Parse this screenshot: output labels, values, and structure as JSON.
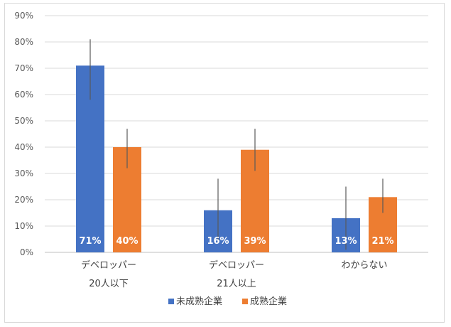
{
  "chart_data": {
    "type": "bar",
    "categories": [
      [
        "デベロッパー",
        "20人以下"
      ],
      [
        "デベロッパー",
        "21人以上"
      ],
      [
        "わからない"
      ]
    ],
    "series": [
      {
        "name": "未成熟企業",
        "color": "#4472c4",
        "values": [
          71,
          16,
          13
        ],
        "labels": [
          "71%",
          "16%",
          "13%"
        ],
        "error_low": [
          58,
          4,
          1
        ],
        "error_high": [
          81,
          28,
          25
        ]
      },
      {
        "name": "成熟企業",
        "color": "#ed7d31",
        "values": [
          40,
          39,
          21
        ],
        "labels": [
          "40%",
          "39%",
          "21%"
        ],
        "error_low": [
          32,
          31,
          15
        ],
        "error_high": [
          47,
          47,
          28
        ]
      }
    ],
    "ylim": [
      0,
      90
    ],
    "yticks": [
      0,
      10,
      20,
      30,
      40,
      50,
      60,
      70,
      80,
      90
    ],
    "ytick_labels": [
      "0%",
      "10%",
      "20%",
      "30%",
      "40%",
      "50%",
      "60%",
      "70%",
      "80%",
      "90%"
    ],
    "grid": true,
    "legend_position": "bottom",
    "error_bars": true
  }
}
